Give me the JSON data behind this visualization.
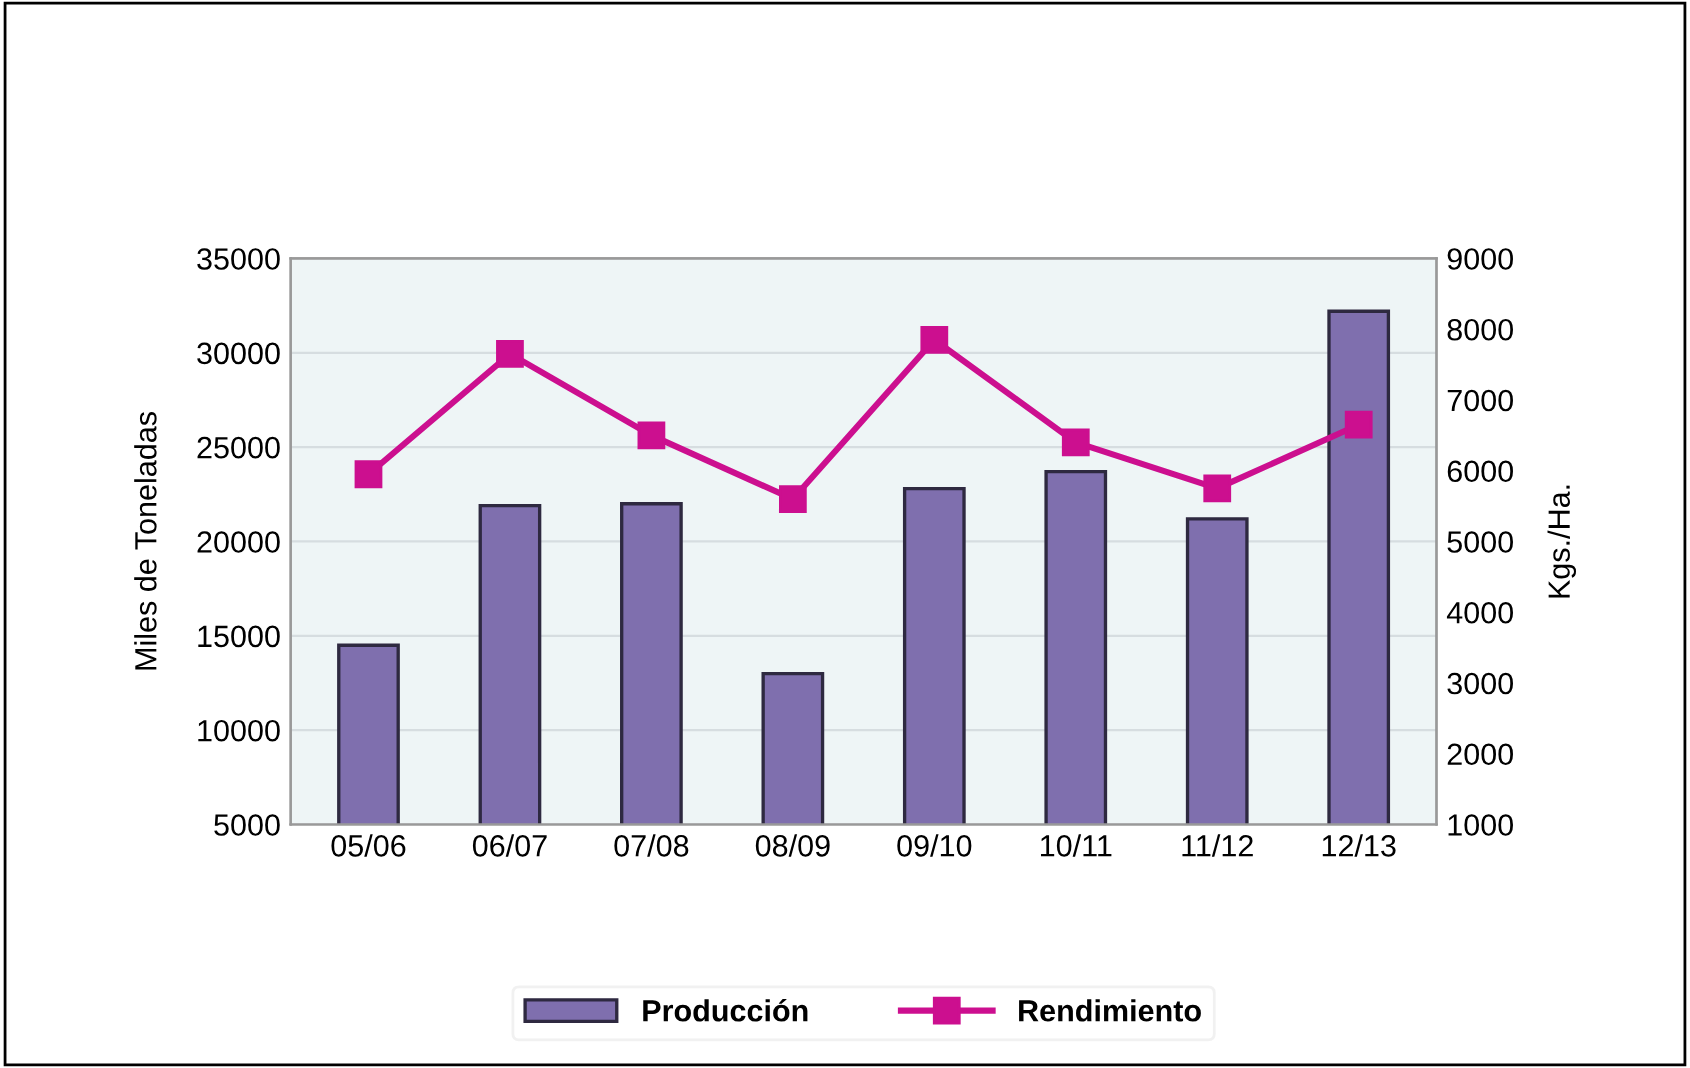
{
  "chart_data": {
    "type": "bar",
    "ylabel": "Miles de Toneladas",
    "y2label": "Kgs./Ha.",
    "categories": [
      "05/06",
      "06/07",
      "07/08",
      "08/09",
      "09/10",
      "10/11",
      "11/12",
      "12/13"
    ],
    "series": [
      {
        "name": "Producción",
        "color": "#7f6fae",
        "values": [
          14500,
          21900,
          22000,
          13000,
          22800,
          23700,
          21200,
          32200
        ]
      },
      {
        "name": "Rendimiento",
        "type": "line",
        "axis": "y2",
        "color": "#cc0f8f",
        "marker": "square",
        "values": [
          5950,
          7650,
          6500,
          5600,
          7850,
          6400,
          5750,
          6650
        ]
      }
    ],
    "ylim": [
      5000,
      35000
    ],
    "yticks": [
      5000,
      10000,
      15000,
      20000,
      25000,
      30000,
      35000
    ],
    "y2lim": [
      1000,
      9000
    ],
    "y2ticks": [
      1000,
      2000,
      3000,
      4000,
      5000,
      6000,
      7000,
      8000,
      9000
    ],
    "grid": "y",
    "legend": "bottom"
  }
}
